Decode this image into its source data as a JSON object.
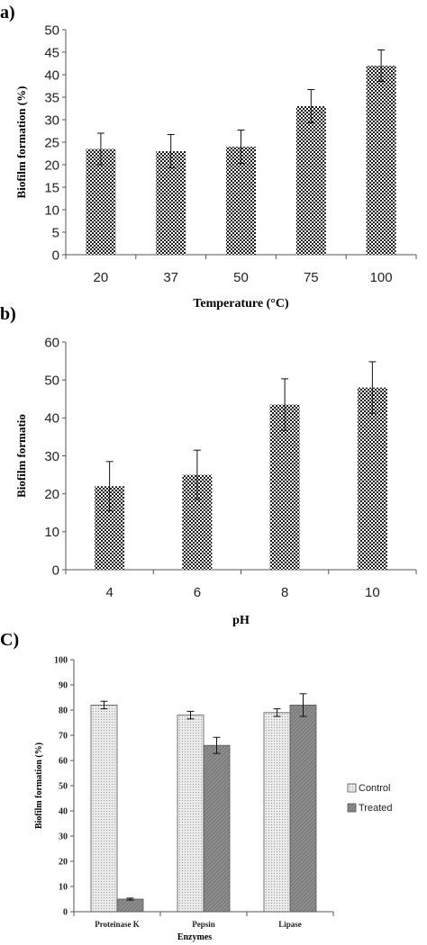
{
  "colors": {
    "axis": "#555555",
    "text": "#000000",
    "control": "#e0e0e0",
    "treated": "#8a8a8a",
    "checker": "#1a1a1a"
  },
  "chart_data": [
    {
      "panel_label": "a)",
      "type": "bar",
      "categories": [
        "20",
        "37",
        "50",
        "75",
        "100"
      ],
      "values": [
        23.5,
        23,
        24,
        33,
        42
      ],
      "errors": [
        3.5,
        3.7,
        3.7,
        3.7,
        3.5
      ],
      "xlabel": "Temperature (°C)",
      "ylabel": "Biofilm formation (%)",
      "ylim": [
        0,
        50
      ],
      "yticks": [
        0,
        5,
        10,
        15,
        20,
        25,
        30,
        35,
        40,
        45,
        50
      ],
      "grid": false
    },
    {
      "panel_label": "b)",
      "type": "bar",
      "categories": [
        "4",
        "6",
        "8",
        "10"
      ],
      "values": [
        22,
        25,
        43.5,
        48
      ],
      "errors": [
        6.5,
        6.5,
        6.8,
        6.8
      ],
      "xlabel": "pH",
      "ylabel": "Biofilm formatio",
      "ylim": [
        0,
        60
      ],
      "yticks": [
        0,
        10,
        20,
        30,
        40,
        50,
        60
      ],
      "grid": false
    },
    {
      "panel_label": "C)",
      "type": "bar",
      "categories": [
        "Proteinase K",
        "Pepsin",
        "Lipase"
      ],
      "series": [
        {
          "name": "Control",
          "values": [
            82,
            78,
            79
          ],
          "errors": [
            1.5,
            1.5,
            1.5
          ]
        },
        {
          "name": "Treated",
          "values": [
            5,
            66,
            82
          ],
          "errors": [
            0.4,
            3.2,
            4.5
          ]
        }
      ],
      "xlabel": "Enzymes",
      "ylabel": "Biofilm formation (%)",
      "ylim": [
        0,
        100
      ],
      "yticks": [
        0,
        10,
        20,
        30,
        40,
        50,
        60,
        70,
        80,
        90,
        100
      ],
      "legend": "right",
      "grid": false
    }
  ]
}
